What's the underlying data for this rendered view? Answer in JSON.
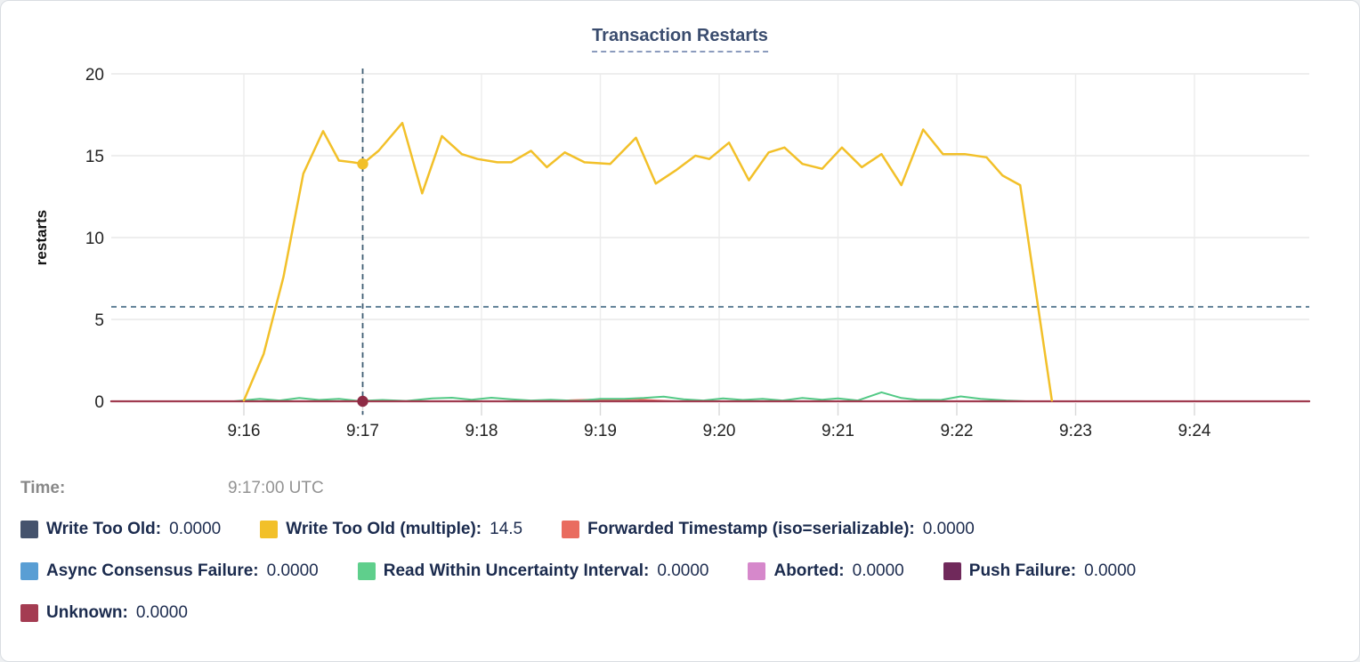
{
  "header": {
    "title": "Transaction Restarts"
  },
  "y_axis_label": "restarts",
  "hover_readout": {
    "label": "Time:",
    "value": "9:17:00 UTC"
  },
  "legend_rows": [
    [
      {
        "slug": "write-too-old",
        "label": "Write Too Old:",
        "value": "0.0000",
        "color": "#45536d"
      },
      {
        "slug": "write-too-old-multiple",
        "label": "Write Too Old (multiple):",
        "value": "14.5",
        "color": "#f2c029"
      },
      {
        "slug": "forwarded-timestamp",
        "label": "Forwarded Timestamp (iso=serializable):",
        "value": "0.0000",
        "color": "#e96c5f"
      }
    ],
    [
      {
        "slug": "async-consensus-failure",
        "label": "Async Consensus Failure:",
        "value": "0.0000",
        "color": "#599ed4"
      },
      {
        "slug": "read-within-uncertainty-interval",
        "label": "Read Within Uncertainty Interval:",
        "value": "0.0000",
        "color": "#5fcf8c"
      },
      {
        "slug": "aborted",
        "label": "Aborted:",
        "value": "0.0000",
        "color": "#d688cb"
      },
      {
        "slug": "push-failure",
        "label": "Push Failure:",
        "value": "0.0000",
        "color": "#70295b"
      }
    ],
    [
      {
        "slug": "unknown",
        "label": "Unknown:",
        "value": "0.0000",
        "color": "#a43c52"
      }
    ]
  ],
  "chart_data": {
    "type": "line",
    "title": "Transaction Restarts",
    "ylabel": "restarts",
    "xlabel": "",
    "grid": true,
    "legend_position": "bottom",
    "y_ticks": [
      0,
      5,
      10,
      15,
      20
    ],
    "ylim": [
      0,
      20
    ],
    "x_tick_labels": [
      "9:16",
      "9:17",
      "9:18",
      "9:19",
      "9:20",
      "9:21",
      "9:22",
      "9:23",
      "9:24"
    ],
    "x_note": "point x values are seconds after 9:15:00 UTC; visible window spans ~9:14:53 to ~9:25:00",
    "x_range_seconds": [
      -7,
      598
    ],
    "crosshair": {
      "time": "9:17:00 UTC",
      "t_sec": 120,
      "y_value": 5.77,
      "points": [
        {
          "series": "Write Too Old (multiple)",
          "value": 14.5,
          "dot_color": "#f2c029"
        },
        {
          "series": "Unknown",
          "value": 0,
          "dot_color": "#8e2b45"
        }
      ]
    },
    "series": [
      {
        "name": "Write Too Old",
        "color": "#45536d",
        "width": 2,
        "points": [
          [
            -7,
            0
          ],
          [
            598,
            0
          ]
        ]
      },
      {
        "name": "Async Consensus Failure",
        "color": "#599ed4",
        "width": 2,
        "points": [
          [
            -7,
            0
          ],
          [
            598,
            0
          ]
        ]
      },
      {
        "name": "Aborted",
        "color": "#d688cb",
        "width": 2,
        "points": [
          [
            -7,
            0
          ],
          [
            598,
            0
          ]
        ]
      },
      {
        "name": "Push Failure",
        "color": "#70295b",
        "width": 2,
        "points": [
          [
            -7,
            0
          ],
          [
            598,
            0
          ]
        ]
      },
      {
        "name": "Forwarded Timestamp (iso=serializable)",
        "color": "#e96c5f",
        "width": 2,
        "points": [
          [
            -7,
            0
          ],
          [
            215,
            0
          ],
          [
            225,
            0.06
          ],
          [
            235,
            0.1
          ],
          [
            245,
            0.08
          ],
          [
            258,
            0.12
          ],
          [
            268,
            0.05
          ],
          [
            278,
            0
          ],
          [
            598,
            0
          ]
        ]
      },
      {
        "name": "Read Within Uncertainty Interval",
        "color": "#52c985",
        "width": 2,
        "points": [
          [
            -7,
            0
          ],
          [
            55,
            0
          ],
          [
            68,
            0.15
          ],
          [
            78,
            0.05
          ],
          [
            88,
            0.2
          ],
          [
            98,
            0.08
          ],
          [
            108,
            0.15
          ],
          [
            118,
            0.02
          ],
          [
            130,
            0.08
          ],
          [
            142,
            0.02
          ],
          [
            155,
            0.18
          ],
          [
            165,
            0.22
          ],
          [
            175,
            0.1
          ],
          [
            185,
            0.22
          ],
          [
            195,
            0.12
          ],
          [
            205,
            0.05
          ],
          [
            215,
            0.1
          ],
          [
            228,
            0.02
          ],
          [
            240,
            0.15
          ],
          [
            252,
            0.15
          ],
          [
            262,
            0.2
          ],
          [
            272,
            0.28
          ],
          [
            282,
            0.12
          ],
          [
            292,
            0.05
          ],
          [
            302,
            0.18
          ],
          [
            312,
            0.08
          ],
          [
            322,
            0.15
          ],
          [
            332,
            0.05
          ],
          [
            342,
            0.2
          ],
          [
            352,
            0.1
          ],
          [
            360,
            0.18
          ],
          [
            370,
            0.05
          ],
          [
            382,
            0.55
          ],
          [
            392,
            0.2
          ],
          [
            400,
            0.1
          ],
          [
            412,
            0.08
          ],
          [
            422,
            0.3
          ],
          [
            432,
            0.15
          ],
          [
            445,
            0.05
          ],
          [
            455,
            0
          ],
          [
            598,
            0
          ]
        ]
      },
      {
        "name": "Unknown",
        "color": "#a03b4f",
        "width": 2.2,
        "points": [
          [
            -7,
            0
          ],
          [
            598,
            0
          ]
        ]
      },
      {
        "name": "Write Too Old (multiple)",
        "color": "#f2c029",
        "width": 2.5,
        "points": [
          [
            60,
            0.05
          ],
          [
            70,
            2.9
          ],
          [
            80,
            7.6
          ],
          [
            90,
            13.9
          ],
          [
            100,
            16.5
          ],
          [
            108,
            14.7
          ],
          [
            115,
            14.6
          ],
          [
            120,
            14.5
          ],
          [
            128,
            15.3
          ],
          [
            140,
            17.0
          ],
          [
            150,
            12.7
          ],
          [
            160,
            16.2
          ],
          [
            170,
            15.1
          ],
          [
            178,
            14.8
          ],
          [
            188,
            14.6
          ],
          [
            195,
            14.6
          ],
          [
            205,
            15.3
          ],
          [
            213,
            14.3
          ],
          [
            222,
            15.2
          ],
          [
            232,
            14.6
          ],
          [
            245,
            14.5
          ],
          [
            258,
            16.1
          ],
          [
            268,
            13.3
          ],
          [
            278,
            14.1
          ],
          [
            288,
            15.0
          ],
          [
            295,
            14.8
          ],
          [
            305,
            15.8
          ],
          [
            315,
            13.5
          ],
          [
            325,
            15.2
          ],
          [
            333,
            15.5
          ],
          [
            342,
            14.5
          ],
          [
            352,
            14.2
          ],
          [
            362,
            15.5
          ],
          [
            372,
            14.3
          ],
          [
            382,
            15.1
          ],
          [
            392,
            13.2
          ],
          [
            403,
            16.6
          ],
          [
            413,
            15.1
          ],
          [
            424,
            15.1
          ],
          [
            435,
            14.9
          ],
          [
            443,
            13.8
          ],
          [
            452,
            13.2
          ],
          [
            468,
            0.05
          ]
        ]
      }
    ]
  }
}
